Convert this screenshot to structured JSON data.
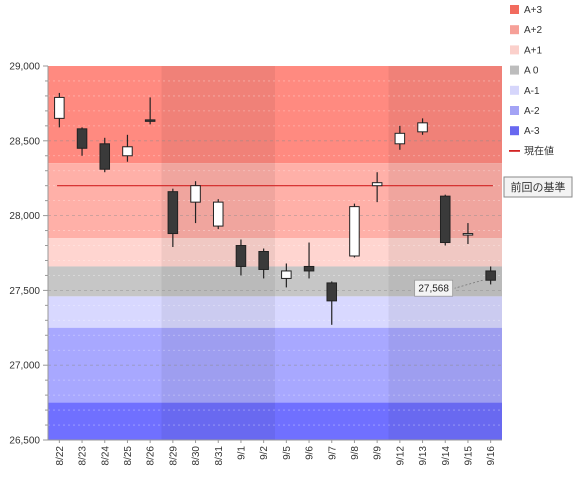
{
  "chart_data": {
    "type": "candlestick",
    "title": "",
    "xlabel": "",
    "ylabel": "",
    "ylim": [
      26500,
      29000
    ],
    "yticks": [
      26500,
      27000,
      27500,
      28000,
      28500,
      29000
    ],
    "ytick_labels": [
      "26,500",
      "27,000",
      "27,500",
      "28,000",
      "28,500",
      "29,000"
    ],
    "grid": true,
    "legend_position": "right",
    "categories": [
      "8/22",
      "8/23",
      "8/24",
      "8/25",
      "8/26",
      "8/29",
      "8/30",
      "8/31",
      "9/1",
      "9/2",
      "9/5",
      "9/6",
      "9/7",
      "9/8",
      "9/9",
      "9/12",
      "9/13",
      "9/14",
      "9/15",
      "9/16"
    ],
    "candles": [
      {
        "open": 28650,
        "high": 28820,
        "low": 28590,
        "close": 28790
      },
      {
        "open": 28580,
        "high": 28590,
        "low": 28400,
        "close": 28450
      },
      {
        "open": 28480,
        "high": 28520,
        "low": 28290,
        "close": 28310
      },
      {
        "open": 28400,
        "high": 28540,
        "low": 28360,
        "close": 28460
      },
      {
        "open": 28640,
        "high": 28790,
        "low": 28610,
        "close": 28630
      },
      {
        "open": 28160,
        "high": 28180,
        "low": 27790,
        "close": 27880
      },
      {
        "open": 28090,
        "high": 28230,
        "low": 27950,
        "close": 28200
      },
      {
        "open": 27930,
        "high": 28110,
        "low": 27910,
        "close": 28090
      },
      {
        "open": 27800,
        "high": 27840,
        "low": 27600,
        "close": 27660
      },
      {
        "open": 27760,
        "high": 27780,
        "low": 27580,
        "close": 27640
      },
      {
        "open": 27580,
        "high": 27680,
        "low": 27520,
        "close": 27630
      },
      {
        "open": 27660,
        "high": 27820,
        "low": 27580,
        "close": 27630
      },
      {
        "open": 27550,
        "high": 27560,
        "low": 27270,
        "close": 27430
      },
      {
        "open": 27730,
        "high": 28080,
        "low": 27720,
        "close": 28060
      },
      {
        "open": 28200,
        "high": 28290,
        "low": 28090,
        "close": 28220
      },
      {
        "open": 28480,
        "high": 28600,
        "low": 28440,
        "close": 28550
      },
      {
        "open": 28560,
        "high": 28650,
        "low": 28540,
        "close": 28620
      },
      {
        "open": 28130,
        "high": 28140,
        "low": 27800,
        "close": 27820
      },
      {
        "open": 27880,
        "high": 27950,
        "low": 27810,
        "close": 27880
      },
      {
        "open": 27630,
        "high": 27660,
        "low": 27540,
        "close": 27568
      }
    ],
    "current_price": 28200,
    "last_price_label": "27,568",
    "bands": [
      {
        "name": "A+3",
        "from": 28350,
        "to": 29000,
        "color": "#ff8a80",
        "legend_color": "#f26b5e"
      },
      {
        "name": "A+2",
        "from": 27850,
        "to": 28350,
        "color": "#ffb0a8",
        "legend_color": "#f6a098"
      },
      {
        "name": "A+1",
        "from": 27660,
        "to": 27850,
        "color": "#ffd5d0",
        "legend_color": "#fbd0cb"
      },
      {
        "name": "A 0",
        "from": 27460,
        "to": 27660,
        "color": "#c6c6c6",
        "legend_color": "#bdbdbd"
      },
      {
        "name": "A-1",
        "from": 27250,
        "to": 27460,
        "color": "#d8d8ff",
        "legend_color": "#d6d6fb"
      },
      {
        "name": "A-2",
        "from": 26750,
        "to": 27250,
        "color": "#a8a8ff",
        "legend_color": "#a3a3f5"
      },
      {
        "name": "A-3",
        "from": 26500,
        "to": 26750,
        "color": "#7070ff",
        "legend_color": "#6868f0"
      }
    ],
    "week_shading": [
      {
        "from_index": 5,
        "to_index": 9
      },
      {
        "from_index": 15,
        "to_index": 19
      }
    ],
    "current_price_legend": "現在値",
    "current_price_color": "#d22323",
    "reference_button": "前回の基準"
  }
}
